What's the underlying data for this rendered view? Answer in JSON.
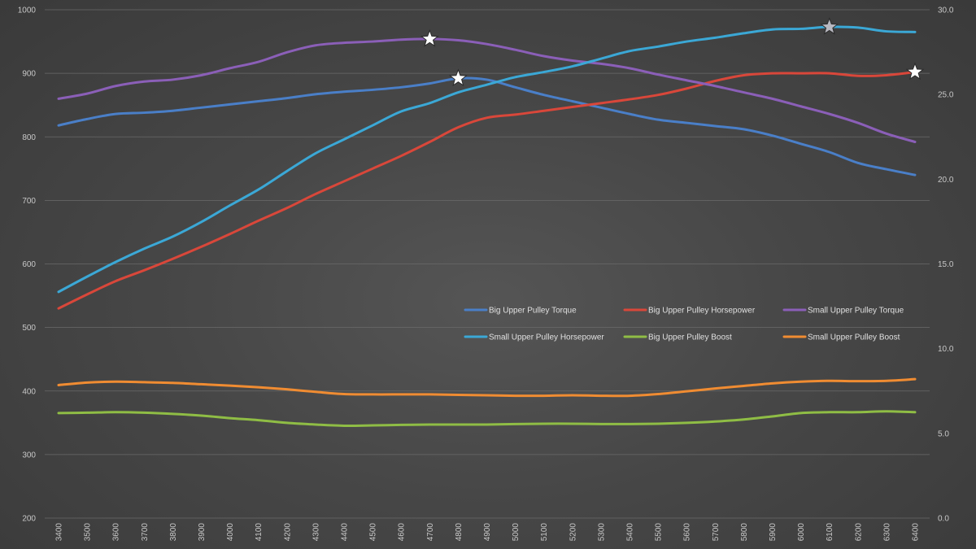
{
  "chart_data": {
    "type": "line",
    "title": "",
    "xlabel": "",
    "ylabel": "",
    "y2label": "",
    "ylim": [
      200,
      1000
    ],
    "y2lim": [
      0,
      30
    ],
    "yticks": [
      "200",
      "300",
      "400",
      "500",
      "600",
      "700",
      "800",
      "900",
      "1000"
    ],
    "y2ticks": [
      "0.0",
      "5.0",
      "10.0",
      "15.0",
      "20.0",
      "25.0",
      "30.0"
    ],
    "x": [
      "3400",
      "3500",
      "3600",
      "3700",
      "3800",
      "3900",
      "4000",
      "4100",
      "4200",
      "4300",
      "4400",
      "4500",
      "4600",
      "4700",
      "4800",
      "4900",
      "5000",
      "5100",
      "5200",
      "5300",
      "5400",
      "5500",
      "5600",
      "5700",
      "5800",
      "5900",
      "6000",
      "6100",
      "6200",
      "6300",
      "6400"
    ],
    "grid": true,
    "legend_position": "center-right",
    "series": [
      {
        "name": "Big Upper Pulley Torque",
        "color": "#4a7fc8",
        "axis": "left",
        "values": [
          818,
          828,
          836,
          838,
          841,
          846,
          851,
          856,
          861,
          867,
          871,
          874,
          878,
          884,
          892,
          890,
          878,
          866,
          856,
          846,
          836,
          827,
          822,
          817,
          812,
          802,
          789,
          776,
          759,
          749,
          740
        ],
        "peak_index": 14
      },
      {
        "name": "Big Upper Pulley Horsepower",
        "color": "#d9473a",
        "axis": "left",
        "values": [
          530,
          552,
          573,
          590,
          608,
          627,
          647,
          668,
          688,
          710,
          730,
          750,
          770,
          792,
          815,
          830,
          835,
          841,
          847,
          853,
          859,
          866,
          876,
          888,
          897,
          900,
          900,
          900,
          896,
          897,
          902
        ],
        "peak_index": 30
      },
      {
        "name": "Small Upper Pulley Torque",
        "color": "#8b5fb8",
        "axis": "left",
        "values": [
          860,
          868,
          880,
          887,
          890,
          897,
          908,
          918,
          933,
          944,
          948,
          950,
          953,
          954,
          952,
          946,
          937,
          927,
          920,
          915,
          908,
          898,
          889,
          880,
          870,
          860,
          848,
          836,
          822,
          805,
          792
        ],
        "peak_index": 13
      },
      {
        "name": "Small Upper Pulley Horsepower",
        "color": "#3ba8d6",
        "axis": "left",
        "values": [
          556,
          580,
          603,
          624,
          643,
          666,
          692,
          717,
          746,
          774,
          796,
          818,
          840,
          853,
          870,
          882,
          894,
          902,
          911,
          923,
          935,
          942,
          950,
          956,
          963,
          969,
          970,
          973,
          972,
          966,
          965
        ],
        "peak_index": 27
      },
      {
        "name": "Big Upper Pulley Boost",
        "color": "#8fbd45",
        "axis": "right",
        "values": [
          6.2,
          6.22,
          6.25,
          6.22,
          6.15,
          6.05,
          5.9,
          5.78,
          5.62,
          5.52,
          5.45,
          5.47,
          5.5,
          5.52,
          5.52,
          5.52,
          5.55,
          5.57,
          5.57,
          5.55,
          5.55,
          5.57,
          5.62,
          5.7,
          5.82,
          6.0,
          6.2,
          6.25,
          6.25,
          6.3,
          6.25
        ],
        "peak_index": null
      },
      {
        "name": "Small Upper Pulley Boost",
        "color": "#f08c32",
        "axis": "right",
        "values": [
          7.85,
          8.0,
          8.05,
          8.02,
          7.98,
          7.9,
          7.82,
          7.72,
          7.6,
          7.45,
          7.32,
          7.3,
          7.3,
          7.3,
          7.27,
          7.25,
          7.22,
          7.22,
          7.25,
          7.22,
          7.22,
          7.32,
          7.48,
          7.65,
          7.8,
          7.95,
          8.05,
          8.1,
          8.08,
          8.1,
          8.2
        ],
        "peak_index": null
      }
    ]
  }
}
